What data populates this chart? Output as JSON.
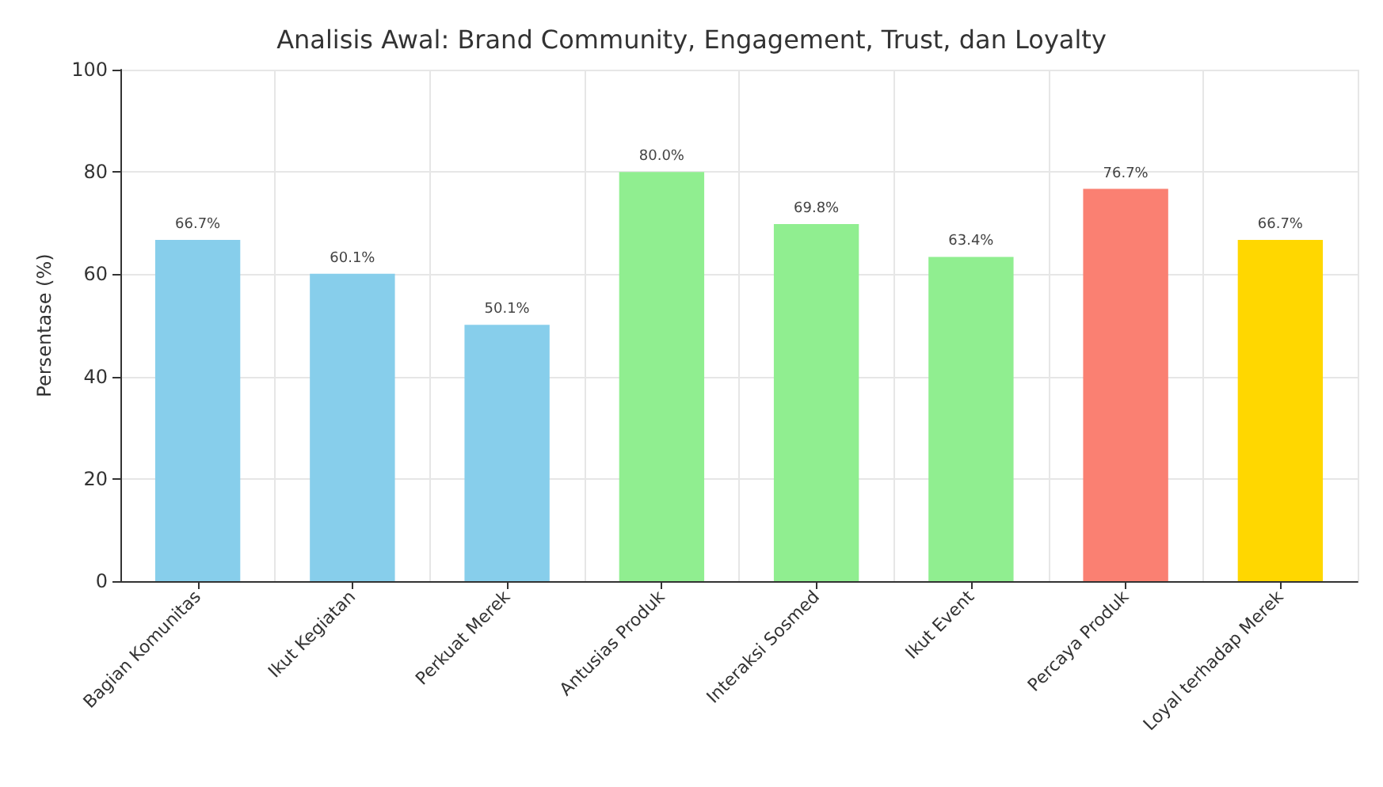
{
  "chart_data": {
    "type": "bar",
    "title": "Analisis Awal: Brand Community, Engagement, Trust, dan Loyalty",
    "ylabel": "Persentase (%)",
    "categories": [
      "Bagian Komunitas",
      "Ikut Kegiatan",
      "Perkuat Merek",
      "Antusias Produk",
      "Interaksi Sosmed",
      "Ikut Event",
      "Percaya Produk",
      "Loyal terhadap Merek"
    ],
    "values": [
      66.7,
      60.1,
      50.1,
      80.0,
      69.8,
      63.4,
      76.7,
      66.7
    ],
    "colors": [
      "#87ceeb",
      "#87ceeb",
      "#87ceeb",
      "#90ee90",
      "#90ee90",
      "#90ee90",
      "#fa8072",
      "#ffd700"
    ],
    "value_labels": [
      "66.7%",
      "60.1%",
      "50.1%",
      "80.0%",
      "69.8%",
      "63.4%",
      "76.7%",
      "66.7%"
    ],
    "ylim": [
      0,
      100
    ],
    "yticks": [
      0,
      20,
      40,
      60,
      80,
      100
    ],
    "grid": true
  }
}
